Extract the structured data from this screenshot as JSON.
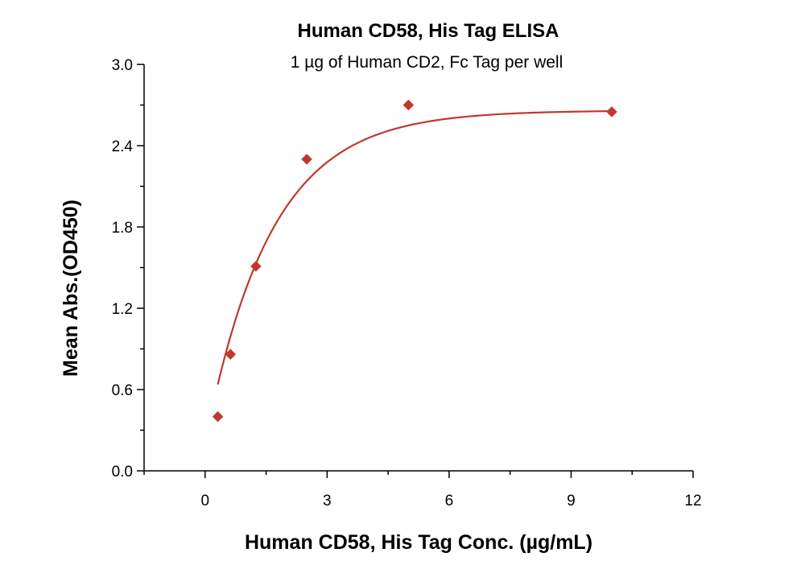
{
  "chart_data": {
    "type": "scatter",
    "title": "Human CD58, His Tag ELISA",
    "subtitle": "1 µg of Human CD2, Fc Tag per well",
    "xlabel": "Human CD58, His Tag Conc. (µg/mL)",
    "ylabel": "Mean Abs.(OD450)",
    "xlim": [
      -1.5,
      12
    ],
    "ylim": [
      0,
      3.0
    ],
    "xticks": [
      0,
      3,
      6,
      9,
      12
    ],
    "xtick_labels": [
      "0",
      "3",
      "6",
      "9",
      "12"
    ],
    "yticks": [
      0,
      0.6,
      1.2,
      1.8,
      2.4,
      3.0
    ],
    "ytick_labels": [
      "0.0",
      "0.6",
      "1.2",
      "1.8",
      "2.4",
      "3.0"
    ],
    "grid": false,
    "series": [
      {
        "marker": "diamond",
        "color": "#c0392b",
        "x": [
          0.3125,
          0.625,
          1.25,
          2.5,
          5,
          10
        ],
        "y": [
          0.4,
          0.86,
          1.51,
          2.3,
          2.7,
          2.65
        ]
      }
    ],
    "fit_curve_color": "#c0392b"
  }
}
